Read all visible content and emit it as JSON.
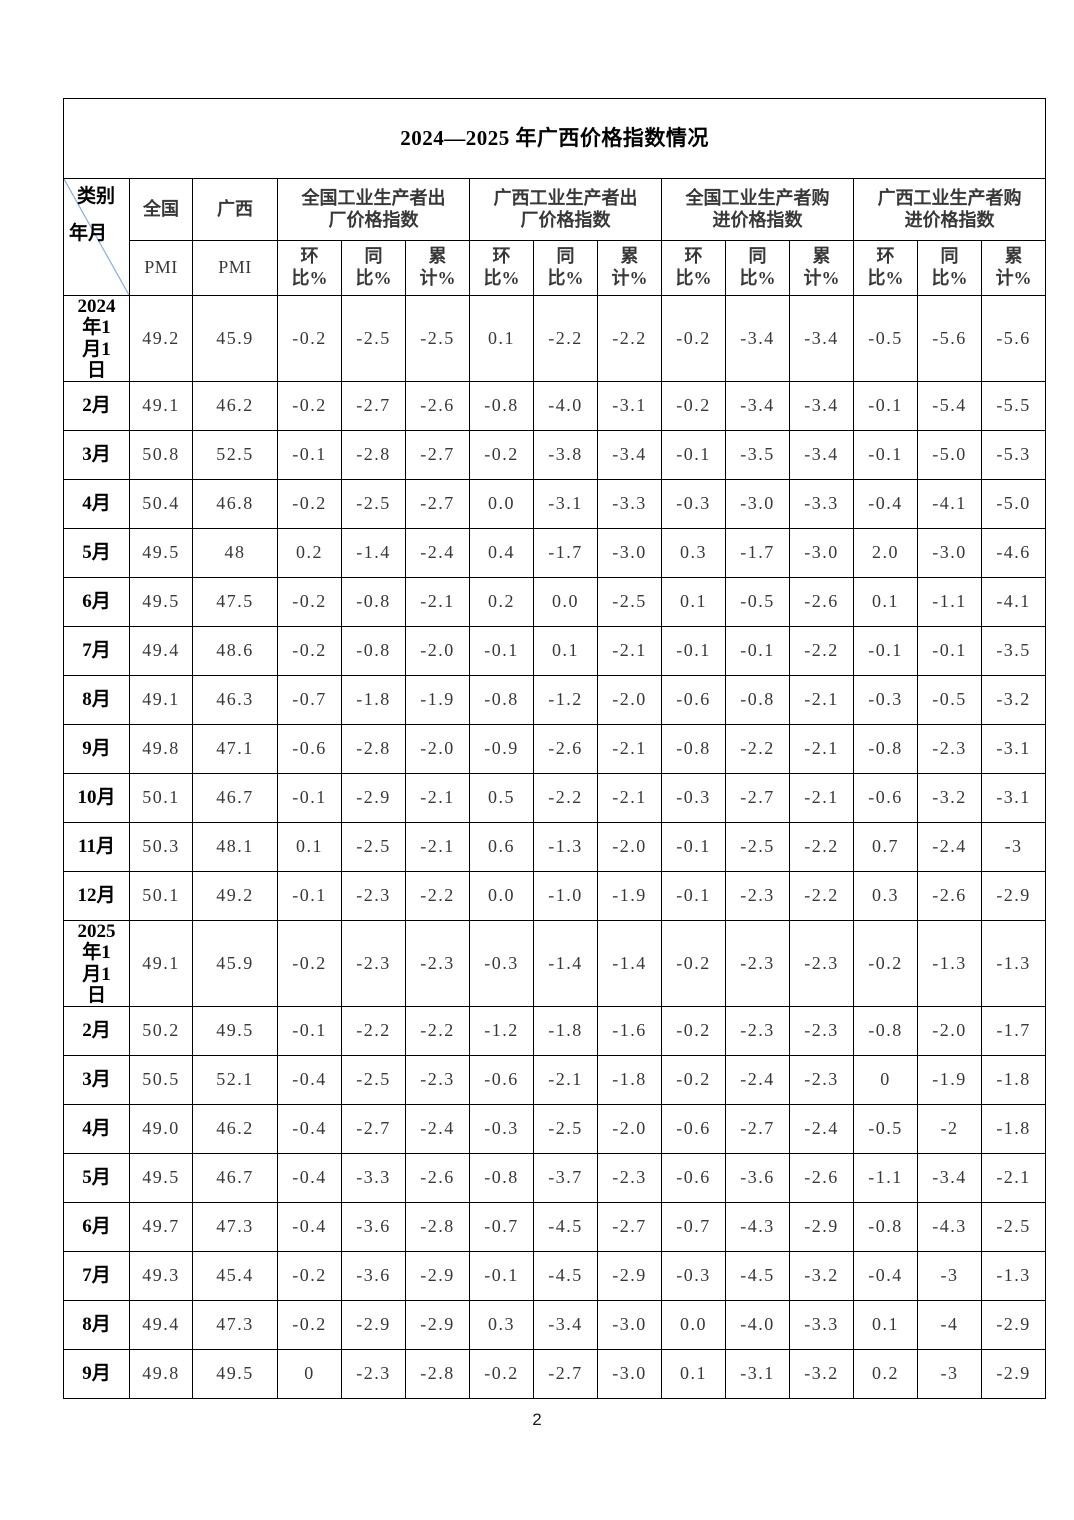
{
  "page": {
    "number": "2"
  },
  "table": {
    "title": "2024—2025 年广西价格指数情况",
    "header": {
      "corner": {
        "top_label": "类别",
        "bottom_label": "年月"
      },
      "pmi_columns": [
        {
          "region": "全国",
          "sub": "PMI"
        },
        {
          "region": "广西",
          "sub": "PMI"
        }
      ],
      "index_groups": [
        "全国工业生产者出\n厂价格指数",
        "广西工业生产者出\n厂价格指数",
        "全国工业生产者购\n进价格指数",
        "广西工业生产者购\n进价格指数"
      ],
      "metric_labels": [
        "环\n比%",
        "同\n比%",
        "累\n计%"
      ],
      "diagonal_color": "#8aafdc"
    },
    "rows": [
      {
        "label": "2024\n年1\n月1\n日",
        "tall": true,
        "values": [
          "49.2",
          "45.9",
          "-0.2",
          "-2.5",
          "-2.5",
          "0.1",
          "-2.2",
          "-2.2",
          "-0.2",
          "-3.4",
          "-3.4",
          "-0.5",
          "-5.6",
          "-5.6"
        ]
      },
      {
        "label": "2月",
        "values": [
          "49.1",
          "46.2",
          "-0.2",
          "-2.7",
          "-2.6",
          "-0.8",
          "-4.0",
          "-3.1",
          "-0.2",
          "-3.4",
          "-3.4",
          "-0.1",
          "-5.4",
          "-5.5"
        ]
      },
      {
        "label": "3月",
        "values": [
          "50.8",
          "52.5",
          "-0.1",
          "-2.8",
          "-2.7",
          "-0.2",
          "-3.8",
          "-3.4",
          "-0.1",
          "-3.5",
          "-3.4",
          "-0.1",
          "-5.0",
          "-5.3"
        ]
      },
      {
        "label": "4月",
        "values": [
          "50.4",
          "46.8",
          "-0.2",
          "-2.5",
          "-2.7",
          "0.0",
          "-3.1",
          "-3.3",
          "-0.3",
          "-3.0",
          "-3.3",
          "-0.4",
          "-4.1",
          "-5.0"
        ]
      },
      {
        "label": "5月",
        "values": [
          "49.5",
          "48",
          "0.2",
          "-1.4",
          "-2.4",
          "0.4",
          "-1.7",
          "-3.0",
          "0.3",
          "-1.7",
          "-3.0",
          "2.0",
          "-3.0",
          "-4.6"
        ]
      },
      {
        "label": "6月",
        "values": [
          "49.5",
          "47.5",
          "-0.2",
          "-0.8",
          "-2.1",
          "0.2",
          "0.0",
          "-2.5",
          "0.1",
          "-0.5",
          "-2.6",
          "0.1",
          "-1.1",
          "-4.1"
        ]
      },
      {
        "label": "7月",
        "values": [
          "49.4",
          "48.6",
          "-0.2",
          "-0.8",
          "-2.0",
          "-0.1",
          "0.1",
          "-2.1",
          "-0.1",
          "-0.1",
          "-2.2",
          "-0.1",
          "-0.1",
          "-3.5"
        ]
      },
      {
        "label": "8月",
        "values": [
          "49.1",
          "46.3",
          "-0.7",
          "-1.8",
          "-1.9",
          "-0.8",
          "-1.2",
          "-2.0",
          "-0.6",
          "-0.8",
          "-2.1",
          "-0.3",
          "-0.5",
          "-3.2"
        ]
      },
      {
        "label": "9月",
        "values": [
          "49.8",
          "47.1",
          "-0.6",
          "-2.8",
          "-2.0",
          "-0.9",
          "-2.6",
          "-2.1",
          "-0.8",
          "-2.2",
          "-2.1",
          "-0.8",
          "-2.3",
          "-3.1"
        ]
      },
      {
        "label": "10月",
        "values": [
          "50.1",
          "46.7",
          "-0.1",
          "-2.9",
          "-2.1",
          "0.5",
          "-2.2",
          "-2.1",
          "-0.3",
          "-2.7",
          "-2.1",
          "-0.6",
          "-3.2",
          "-3.1"
        ]
      },
      {
        "label": "11月",
        "values": [
          "50.3",
          "48.1",
          "0.1",
          "-2.5",
          "-2.1",
          "0.6",
          "-1.3",
          "-2.0",
          "-0.1",
          "-2.5",
          "-2.2",
          "0.7",
          "-2.4",
          "-3"
        ]
      },
      {
        "label": "12月",
        "values": [
          "50.1",
          "49.2",
          "-0.1",
          "-2.3",
          "-2.2",
          "0.0",
          "-1.0",
          "-1.9",
          "-0.1",
          "-2.3",
          "-2.2",
          "0.3",
          "-2.6",
          "-2.9"
        ]
      },
      {
        "label": "2025\n年1\n月1\n日",
        "tall": true,
        "values": [
          "49.1",
          "45.9",
          "-0.2",
          "-2.3",
          "-2.3",
          "-0.3",
          "-1.4",
          "-1.4",
          "-0.2",
          "-2.3",
          "-2.3",
          "-0.2",
          "-1.3",
          "-1.3"
        ]
      },
      {
        "label": "2月",
        "values": [
          "50.2",
          "49.5",
          "-0.1",
          "-2.2",
          "-2.2",
          "-1.2",
          "-1.8",
          "-1.6",
          "-0.2",
          "-2.3",
          "-2.3",
          "-0.8",
          "-2.0",
          "-1.7"
        ]
      },
      {
        "label": "3月",
        "values": [
          "50.5",
          "52.1",
          "-0.4",
          "-2.5",
          "-2.3",
          "-0.6",
          "-2.1",
          "-1.8",
          "-0.2",
          "-2.4",
          "-2.3",
          "0",
          "-1.9",
          "-1.8"
        ]
      },
      {
        "label": "4月",
        "values": [
          "49.0",
          "46.2",
          "-0.4",
          "-2.7",
          "-2.4",
          "-0.3",
          "-2.5",
          "-2.0",
          "-0.6",
          "-2.7",
          "-2.4",
          "-0.5",
          "-2",
          "-1.8"
        ]
      },
      {
        "label": "5月",
        "values": [
          "49.5",
          "46.7",
          "-0.4",
          "-3.3",
          "-2.6",
          "-0.8",
          "-3.7",
          "-2.3",
          "-0.6",
          "-3.6",
          "-2.6",
          "-1.1",
          "-3.4",
          "-2.1"
        ]
      },
      {
        "label": "6月",
        "values": [
          "49.7",
          "47.3",
          "-0.4",
          "-3.6",
          "-2.8",
          "-0.7",
          "-4.5",
          "-2.7",
          "-0.7",
          "-4.3",
          "-2.9",
          "-0.8",
          "-4.3",
          "-2.5"
        ]
      },
      {
        "label": "7月",
        "values": [
          "49.3",
          "45.4",
          "-0.2",
          "-3.6",
          "-2.9",
          "-0.1",
          "-4.5",
          "-2.9",
          "-0.3",
          "-4.5",
          "-3.2",
          "-0.4",
          "-3",
          "-1.3"
        ]
      },
      {
        "label": "8月",
        "values": [
          "49.4",
          "47.3",
          "-0.2",
          "-2.9",
          "-2.9",
          "0.3",
          "-3.4",
          "-3.0",
          "0.0",
          "-4.0",
          "-3.3",
          "0.1",
          "-4",
          "-2.9"
        ]
      },
      {
        "label": "9月",
        "values": [
          "49.8",
          "49.5",
          "0",
          "-2.3",
          "-2.8",
          "-0.2",
          "-2.7",
          "-3.0",
          "0.1",
          "-3.1",
          "-3.2",
          "0.2",
          "-3",
          "-2.9"
        ]
      }
    ]
  }
}
